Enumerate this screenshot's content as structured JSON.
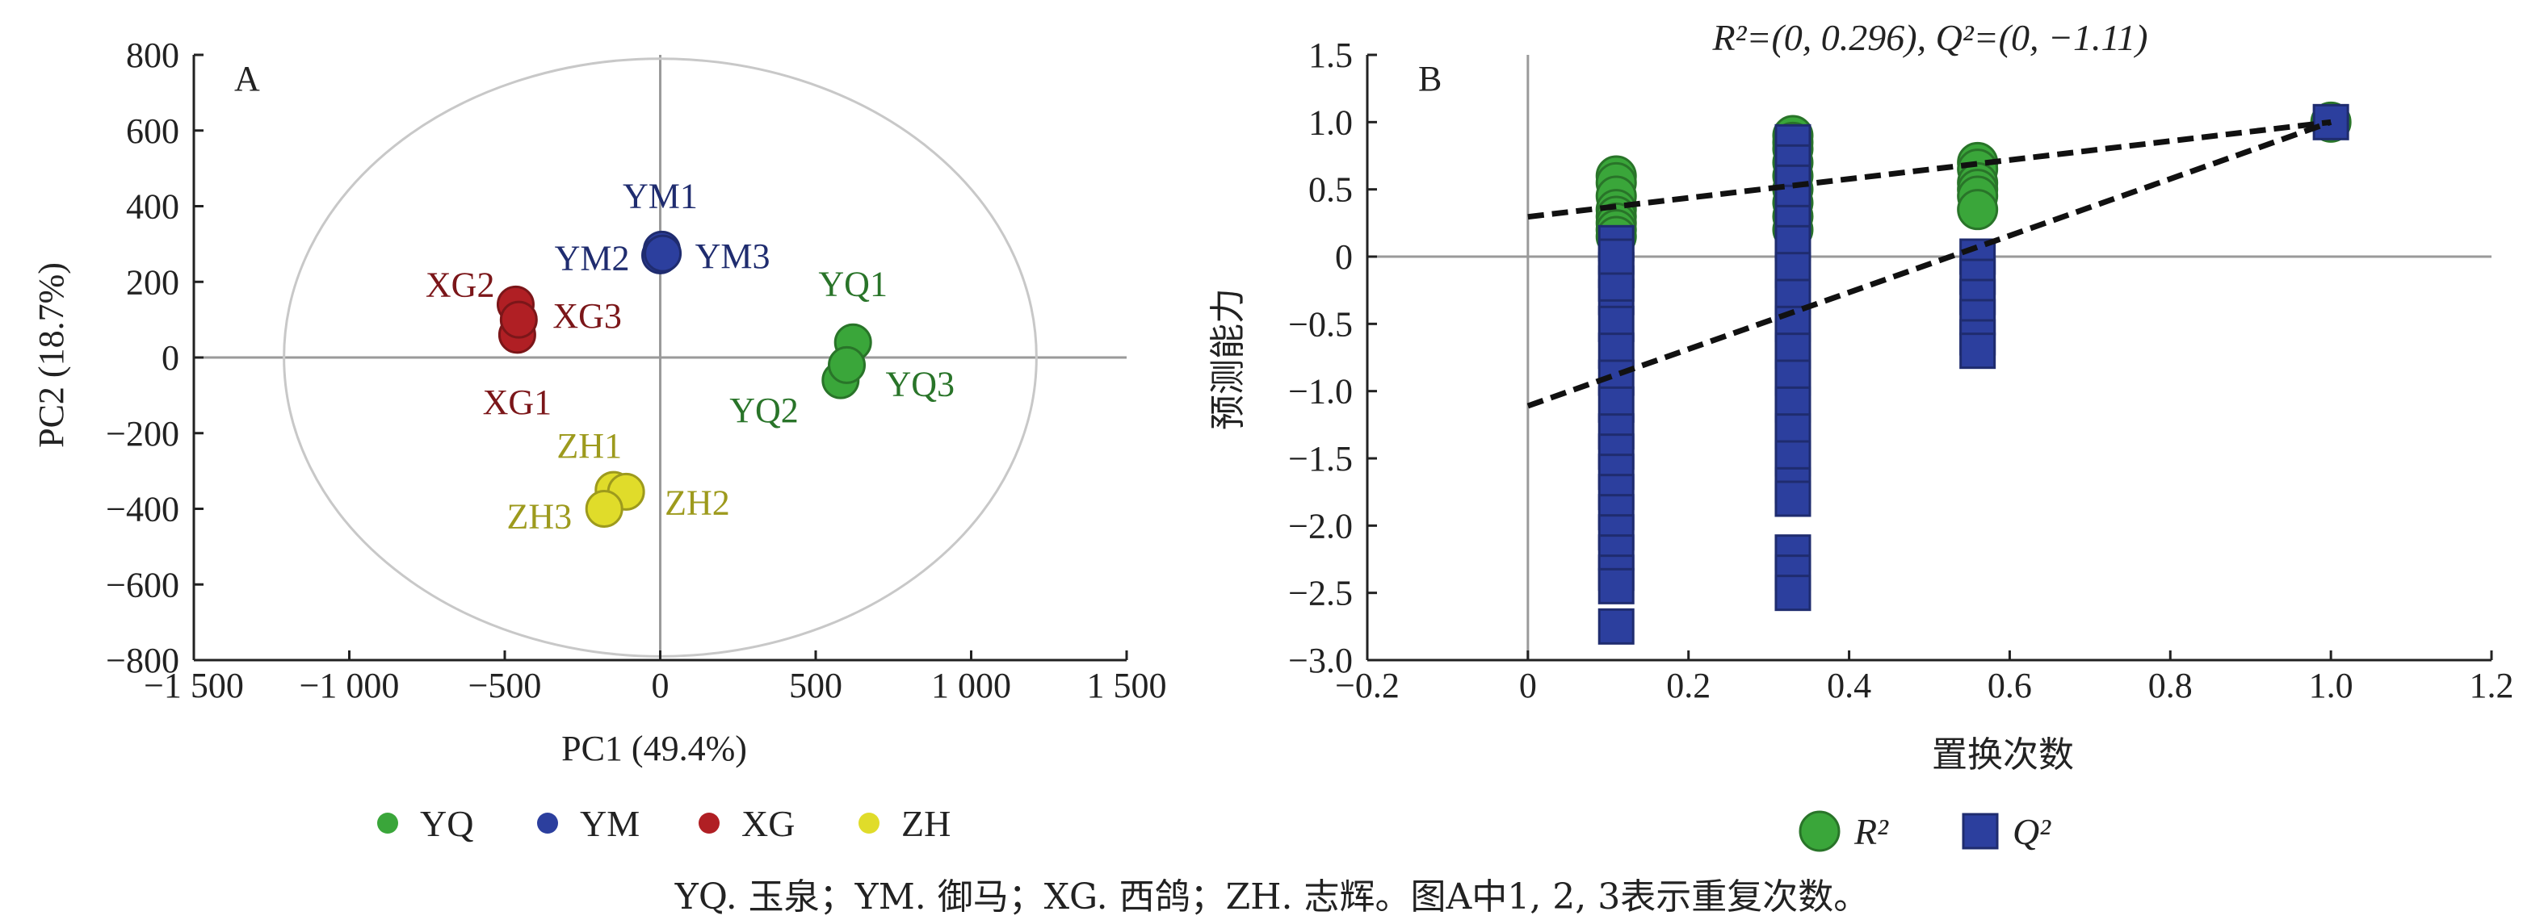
{
  "chart_data": [
    {
      "panel_label": "A",
      "type": "scatter",
      "xlabel": "PC1 (49.4%)",
      "ylabel": "PC2 (18.7%)",
      "xlim": [
        -1500,
        1500
      ],
      "ylim": [
        -800,
        800
      ],
      "xticks": [
        -1500,
        -1000,
        -500,
        0,
        500,
        1000,
        1500
      ],
      "xtick_labels": [
        "−1 500",
        "−1 000",
        "−500",
        "0",
        "500",
        "1 000",
        "1 500"
      ],
      "yticks": [
        -800,
        -600,
        -400,
        -200,
        0,
        200,
        400,
        600,
        800
      ],
      "ytick_labels": [
        "−800",
        "−600",
        "−400",
        "−200",
        "0",
        "200",
        "400",
        "600",
        "800"
      ],
      "ellipse": {
        "cx": 0,
        "cy": 0,
        "rx": 1210,
        "ry": 790
      },
      "series": [
        {
          "name": "YQ",
          "color": "#3aa63a",
          "points": [
            {
              "label": "YQ1",
              "x": 620,
              "y": 40
            },
            {
              "label": "YQ2",
              "x": 580,
              "y": -60
            },
            {
              "label": "YQ3",
              "x": 600,
              "y": -20
            }
          ]
        },
        {
          "name": "YM",
          "color": "#2c3f9e",
          "points": [
            {
              "label": "YM1",
              "x": 5,
              "y": 285
            },
            {
              "label": "YM2",
              "x": 0,
              "y": 270
            },
            {
              "label": "YM3",
              "x": 8,
              "y": 275
            }
          ]
        },
        {
          "name": "XG",
          "color": "#b01f24",
          "points": [
            {
              "label": "XG1",
              "x": -460,
              "y": 60
            },
            {
              "label": "XG2",
              "x": -465,
              "y": 140
            },
            {
              "label": "XG3",
              "x": -455,
              "y": 100
            }
          ]
        },
        {
          "name": "ZH",
          "color": "#e0dc2a",
          "points": [
            {
              "label": "ZH1",
              "x": -150,
              "y": -350
            },
            {
              "label": "ZH2",
              "x": -110,
              "y": -355
            },
            {
              "label": "ZH3",
              "x": -180,
              "y": -400
            }
          ]
        }
      ],
      "legend": [
        "YQ",
        "YM",
        "XG",
        "ZH"
      ]
    },
    {
      "panel_label": "B",
      "type": "scatter",
      "title": "R²=(0, 0.296), Q²=(0, −1.11)",
      "xlabel": "置换次数",
      "ylabel": "预测能力",
      "xlim": [
        -0.2,
        1.2
      ],
      "ylim": [
        -3.0,
        1.5
      ],
      "xticks": [
        -0.2,
        0,
        0.2,
        0.4,
        0.6,
        0.8,
        1.0,
        1.2
      ],
      "xtick_labels": [
        "−0.2",
        "0",
        "0.2",
        "0.4",
        "0.6",
        "0.8",
        "1.0",
        "1.2"
      ],
      "yticks": [
        -3.0,
        -2.5,
        -2.0,
        -1.5,
        -1.0,
        -0.5,
        0,
        0.5,
        1.0,
        1.5
      ],
      "ytick_labels": [
        "−3.0",
        "−2.5",
        "−2.0",
        "−1.5",
        "−1.0",
        "−0.5",
        "0",
        "0.5",
        "1.0",
        "1.5"
      ],
      "series": [
        {
          "name": "R²",
          "color": "#3aa63a",
          "marker": "circle",
          "x": [
            0.11,
            0.11,
            0.11,
            0.11,
            0.11,
            0.11,
            0.11,
            0.11,
            0.33,
            0.33,
            0.33,
            0.33,
            0.33,
            0.33,
            0.33,
            0.33,
            0.33,
            0.56,
            0.56,
            0.56,
            0.56,
            0.56,
            0.56,
            1.0
          ],
          "y": [
            0.6,
            0.55,
            0.45,
            0.35,
            0.3,
            0.25,
            0.2,
            0.15,
            0.9,
            0.85,
            0.8,
            0.7,
            0.6,
            0.5,
            0.4,
            0.3,
            0.2,
            0.7,
            0.65,
            0.55,
            0.5,
            0.45,
            0.35,
            1.0
          ]
        },
        {
          "name": "Q²",
          "color": "#2c3f9e",
          "marker": "square",
          "x": [
            0.11,
            0.11,
            0.11,
            0.11,
            0.11,
            0.11,
            0.11,
            0.11,
            0.11,
            0.11,
            0.11,
            0.11,
            0.11,
            0.11,
            0.11,
            0.11,
            0.11,
            0.11,
            0.11,
            0.33,
            0.33,
            0.33,
            0.33,
            0.33,
            0.33,
            0.33,
            0.33,
            0.33,
            0.33,
            0.33,
            0.33,
            0.33,
            0.33,
            0.33,
            0.33,
            0.33,
            0.33,
            0.33,
            0.56,
            0.56,
            0.56,
            0.56,
            0.56,
            0.56,
            1.0
          ],
          "y": [
            0.1,
            -0.1,
            -0.3,
            -0.5,
            -0.7,
            -0.9,
            -1.1,
            -1.3,
            -1.45,
            -1.6,
            -1.75,
            -1.9,
            -2.05,
            -2.2,
            -2.35,
            -2.45,
            -2.75,
            -0.2,
            0.0,
            0.85,
            0.7,
            0.55,
            0.4,
            0.25,
            0.1,
            -0.1,
            -0.3,
            -0.5,
            -0.7,
            -0.9,
            -1.1,
            -1.3,
            -1.5,
            -1.7,
            -1.8,
            -2.2,
            -2.35,
            -2.5,
            0.0,
            -0.15,
            -0.3,
            -0.45,
            -0.6,
            -0.7,
            1.0
          ]
        }
      ],
      "regression_lines": [
        {
          "series": "R²",
          "intercept": 0.296
        },
        {
          "series": "Q²",
          "intercept": -1.11
        }
      ],
      "legend": [
        "R²",
        "Q²"
      ]
    }
  ],
  "caption": "YQ. 玉泉；YM. 御马；XG. 西鸽；ZH. 志辉。图A中1, 2, 3表示重复次数。"
}
